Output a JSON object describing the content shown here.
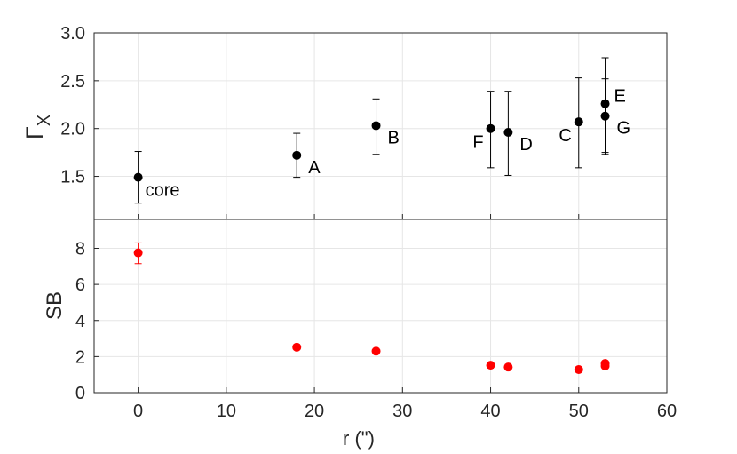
{
  "chart_data": {
    "type": "scatter",
    "shared_x": {
      "label": "r (\")",
      "lim": [
        -5,
        60
      ],
      "ticks": [
        0,
        10,
        20,
        30,
        40,
        50,
        60
      ]
    },
    "panels": [
      {
        "id": "gamma",
        "ylabel_main": "Γ",
        "ylabel_sub": "X",
        "ylim": [
          1.05,
          3.0
        ],
        "yticks": [
          1.5,
          2.0,
          2.5,
          3.0
        ],
        "ytick_labels": [
          "1.5",
          "2.0",
          "2.5",
          "3.0"
        ],
        "grid": true,
        "color": "#000000",
        "points": [
          {
            "label": "core",
            "x": 0,
            "y": 1.49,
            "err_lo": 1.22,
            "err_hi": 1.76,
            "label_pos": "below-right"
          },
          {
            "label": "A",
            "x": 18,
            "y": 1.72,
            "err_lo": 1.49,
            "err_hi": 1.95,
            "label_pos": "right-below"
          },
          {
            "label": "B",
            "x": 27,
            "y": 2.03,
            "err_lo": 1.73,
            "err_hi": 2.31,
            "label_pos": "right-below"
          },
          {
            "label": "F",
            "x": 40,
            "y": 2.0,
            "err_lo": 1.59,
            "err_hi": 2.39,
            "label_pos": "left-below"
          },
          {
            "label": "D",
            "x": 42,
            "y": 1.96,
            "err_lo": 1.51,
            "err_hi": 2.39,
            "label_pos": "right-below"
          },
          {
            "label": "C",
            "x": 50,
            "y": 2.07,
            "err_lo": 1.59,
            "err_hi": 2.53,
            "label_pos": "left-below"
          },
          {
            "label": "E",
            "x": 53,
            "y": 2.26,
            "err_lo": 1.75,
            "err_hi": 2.74,
            "label_pos": "right-above"
          },
          {
            "label": "G",
            "x": 53,
            "y": 2.13,
            "err_lo": 1.73,
            "err_hi": 2.52,
            "label_pos": "right-below"
          }
        ]
      },
      {
        "id": "sb",
        "ylabel_main": "SB",
        "ylim": [
          0,
          9.6
        ],
        "yticks": [
          0,
          2,
          4,
          6,
          8
        ],
        "ytick_labels": [
          "0",
          "2",
          "4",
          "6",
          "8"
        ],
        "grid": true,
        "color": "#ff0000",
        "points": [
          {
            "x": 0,
            "y": 7.75,
            "err_lo": 7.15,
            "err_hi": 8.3
          },
          {
            "x": 18,
            "y": 2.52
          },
          {
            "x": 27,
            "y": 2.3
          },
          {
            "x": 40,
            "y": 1.52
          },
          {
            "x": 42,
            "y": 1.42
          },
          {
            "x": 50,
            "y": 1.28
          },
          {
            "x": 53,
            "y": 1.62
          },
          {
            "x": 53,
            "y": 1.48
          }
        ]
      }
    ]
  }
}
